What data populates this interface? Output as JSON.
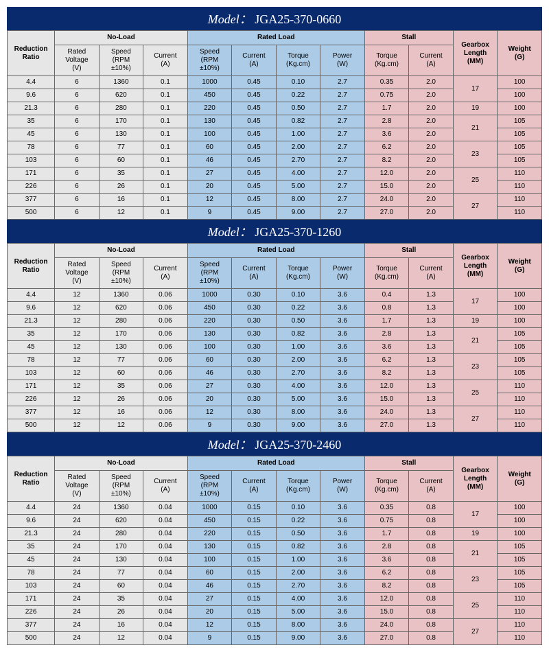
{
  "colors": {
    "header_bg": "#0a2a6e",
    "header_fg": "#ffffff",
    "gray": "#e6e6e6",
    "blue": "#accbe6",
    "pink": "#e8c2c4",
    "border": "#666666"
  },
  "labels": {
    "model_prefix": "Model：",
    "groups": {
      "noload": "No-Load",
      "rated": "Rated Load",
      "stall": "Stall"
    },
    "cols": {
      "ratio": "Reduction\nRatio",
      "voltage": "Rated\nVoltage\n(V)",
      "speed": "Speed\n(RPM\n±10%)",
      "current": "Current\n(A)",
      "torque_kgcm": "Torque\n(Kg.cm)",
      "power": "Power\n(W)",
      "torque_stall": "Torque\n(Kg.cm)",
      "current_stall": "Current\n(A)",
      "gearbox": "Gearbox\nLength\n(MM)",
      "weight": "Weight\n(G)"
    }
  },
  "tables": [
    {
      "model": "JGA25-370-0660",
      "rows": [
        {
          "ratio": "4.4",
          "v": "6",
          "nl_speed": "1360",
          "nl_cur": "0.1",
          "r_speed": "1000",
          "r_cur": "0.45",
          "r_tor": "0.10",
          "r_pow": "2.7",
          "s_tor": "0.35",
          "s_cur": "2.0",
          "gb": "17",
          "wt": "100"
        },
        {
          "ratio": "9.6",
          "v": "6",
          "nl_speed": "620",
          "nl_cur": "0.1",
          "r_speed": "450",
          "r_cur": "0.45",
          "r_tor": "0.22",
          "r_pow": "2.7",
          "s_tor": "0.75",
          "s_cur": "2.0",
          "gb": "",
          "wt": "100"
        },
        {
          "ratio": "21.3",
          "v": "6",
          "nl_speed": "280",
          "nl_cur": "0.1",
          "r_speed": "220",
          "r_cur": "0.45",
          "r_tor": "0.50",
          "r_pow": "2.7",
          "s_tor": "1.7",
          "s_cur": "2.0",
          "gb": "19",
          "wt": "100"
        },
        {
          "ratio": "35",
          "v": "6",
          "nl_speed": "170",
          "nl_cur": "0.1",
          "r_speed": "130",
          "r_cur": "0.45",
          "r_tor": "0.82",
          "r_pow": "2.7",
          "s_tor": "2.8",
          "s_cur": "2.0",
          "gb": "21",
          "wt": "105"
        },
        {
          "ratio": "45",
          "v": "6",
          "nl_speed": "130",
          "nl_cur": "0.1",
          "r_speed": "100",
          "r_cur": "0.45",
          "r_tor": "1.00",
          "r_pow": "2.7",
          "s_tor": "3.6",
          "s_cur": "2.0",
          "gb": "",
          "wt": "105"
        },
        {
          "ratio": "78",
          "v": "6",
          "nl_speed": "77",
          "nl_cur": "0.1",
          "r_speed": "60",
          "r_cur": "0.45",
          "r_tor": "2.00",
          "r_pow": "2.7",
          "s_tor": "6.2",
          "s_cur": "2.0",
          "gb": "23",
          "wt": "105"
        },
        {
          "ratio": "103",
          "v": "6",
          "nl_speed": "60",
          "nl_cur": "0.1",
          "r_speed": "46",
          "r_cur": "0.45",
          "r_tor": "2.70",
          "r_pow": "2.7",
          "s_tor": "8.2",
          "s_cur": "2.0",
          "gb": "",
          "wt": "105"
        },
        {
          "ratio": "171",
          "v": "6",
          "nl_speed": "35",
          "nl_cur": "0.1",
          "r_speed": "27",
          "r_cur": "0.45",
          "r_tor": "4.00",
          "r_pow": "2.7",
          "s_tor": "12.0",
          "s_cur": "2.0",
          "gb": "25",
          "wt": "110"
        },
        {
          "ratio": "226",
          "v": "6",
          "nl_speed": "26",
          "nl_cur": "0.1",
          "r_speed": "20",
          "r_cur": "0.45",
          "r_tor": "5.00",
          "r_pow": "2.7",
          "s_tor": "15.0",
          "s_cur": "2.0",
          "gb": "",
          "wt": "110"
        },
        {
          "ratio": "377",
          "v": "6",
          "nl_speed": "16",
          "nl_cur": "0.1",
          "r_speed": "12",
          "r_cur": "0.45",
          "r_tor": "8.00",
          "r_pow": "2.7",
          "s_tor": "24.0",
          "s_cur": "2.0",
          "gb": "27",
          "wt": "110"
        },
        {
          "ratio": "500",
          "v": "6",
          "nl_speed": "12",
          "nl_cur": "0.1",
          "r_speed": "9",
          "r_cur": "0.45",
          "r_tor": "9.00",
          "r_pow": "2.7",
          "s_tor": "27.0",
          "s_cur": "2.0",
          "gb": "",
          "wt": "110"
        }
      ],
      "gearbox_spans": [
        2,
        1,
        2,
        2,
        2,
        2
      ]
    },
    {
      "model": "JGA25-370-1260",
      "rows": [
        {
          "ratio": "4.4",
          "v": "12",
          "nl_speed": "1360",
          "nl_cur": "0.06",
          "r_speed": "1000",
          "r_cur": "0.30",
          "r_tor": "0.10",
          "r_pow": "3.6",
          "s_tor": "0.4",
          "s_cur": "1.3",
          "gb": "17",
          "wt": "100"
        },
        {
          "ratio": "9.6",
          "v": "12",
          "nl_speed": "620",
          "nl_cur": "0.06",
          "r_speed": "450",
          "r_cur": "0.30",
          "r_tor": "0.22",
          "r_pow": "3.6",
          "s_tor": "0.8",
          "s_cur": "1.3",
          "gb": "",
          "wt": "100"
        },
        {
          "ratio": "21.3",
          "v": "12",
          "nl_speed": "280",
          "nl_cur": "0.06",
          "r_speed": "220",
          "r_cur": "0.30",
          "r_tor": "0.50",
          "r_pow": "3.6",
          "s_tor": "1.7",
          "s_cur": "1.3",
          "gb": "19",
          "wt": "100"
        },
        {
          "ratio": "35",
          "v": "12",
          "nl_speed": "170",
          "nl_cur": "0.06",
          "r_speed": "130",
          "r_cur": "0.30",
          "r_tor": "0.82",
          "r_pow": "3.6",
          "s_tor": "2.8",
          "s_cur": "1.3",
          "gb": "21",
          "wt": "105"
        },
        {
          "ratio": "45",
          "v": "12",
          "nl_speed": "130",
          "nl_cur": "0.06",
          "r_speed": "100",
          "r_cur": "0.30",
          "r_tor": "1.00",
          "r_pow": "3.6",
          "s_tor": "3.6",
          "s_cur": "1.3",
          "gb": "",
          "wt": "105"
        },
        {
          "ratio": "78",
          "v": "12",
          "nl_speed": "77",
          "nl_cur": "0.06",
          "r_speed": "60",
          "r_cur": "0.30",
          "r_tor": "2.00",
          "r_pow": "3.6",
          "s_tor": "6.2",
          "s_cur": "1.3",
          "gb": "23",
          "wt": "105"
        },
        {
          "ratio": "103",
          "v": "12",
          "nl_speed": "60",
          "nl_cur": "0.06",
          "r_speed": "46",
          "r_cur": "0.30",
          "r_tor": "2.70",
          "r_pow": "3.6",
          "s_tor": "8.2",
          "s_cur": "1.3",
          "gb": "",
          "wt": "105"
        },
        {
          "ratio": "171",
          "v": "12",
          "nl_speed": "35",
          "nl_cur": "0.06",
          "r_speed": "27",
          "r_cur": "0.30",
          "r_tor": "4.00",
          "r_pow": "3.6",
          "s_tor": "12.0",
          "s_cur": "1.3",
          "gb": "25",
          "wt": "110"
        },
        {
          "ratio": "226",
          "v": "12",
          "nl_speed": "26",
          "nl_cur": "0.06",
          "r_speed": "20",
          "r_cur": "0.30",
          "r_tor": "5.00",
          "r_pow": "3.6",
          "s_tor": "15.0",
          "s_cur": "1.3",
          "gb": "",
          "wt": "110"
        },
        {
          "ratio": "377",
          "v": "12",
          "nl_speed": "16",
          "nl_cur": "0.06",
          "r_speed": "12",
          "r_cur": "0.30",
          "r_tor": "8.00",
          "r_pow": "3.6",
          "s_tor": "24.0",
          "s_cur": "1.3",
          "gb": "27",
          "wt": "110"
        },
        {
          "ratio": "500",
          "v": "12",
          "nl_speed": "12",
          "nl_cur": "0.06",
          "r_speed": "9",
          "r_cur": "0.30",
          "r_tor": "9.00",
          "r_pow": "3.6",
          "s_tor": "27.0",
          "s_cur": "1.3",
          "gb": "",
          "wt": "110"
        }
      ],
      "gearbox_spans": [
        2,
        1,
        2,
        2,
        2,
        2
      ]
    },
    {
      "model": "JGA25-370-2460",
      "rows": [
        {
          "ratio": "4.4",
          "v": "24",
          "nl_speed": "1360",
          "nl_cur": "0.04",
          "r_speed": "1000",
          "r_cur": "0.15",
          "r_tor": "0.10",
          "r_pow": "3.6",
          "s_tor": "0.35",
          "s_cur": "0.8",
          "gb": "17",
          "wt": "100"
        },
        {
          "ratio": "9.6",
          "v": "24",
          "nl_speed": "620",
          "nl_cur": "0.04",
          "r_speed": "450",
          "r_cur": "0.15",
          "r_tor": "0.22",
          "r_pow": "3.6",
          "s_tor": "0.75",
          "s_cur": "0.8",
          "gb": "",
          "wt": "100"
        },
        {
          "ratio": "21.3",
          "v": "24",
          "nl_speed": "280",
          "nl_cur": "0.04",
          "r_speed": "220",
          "r_cur": "0.15",
          "r_tor": "0.50",
          "r_pow": "3.6",
          "s_tor": "1.7",
          "s_cur": "0.8",
          "gb": "19",
          "wt": "100"
        },
        {
          "ratio": "35",
          "v": "24",
          "nl_speed": "170",
          "nl_cur": "0.04",
          "r_speed": "130",
          "r_cur": "0.15",
          "r_tor": "0.82",
          "r_pow": "3.6",
          "s_tor": "2.8",
          "s_cur": "0.8",
          "gb": "21",
          "wt": "105"
        },
        {
          "ratio": "45",
          "v": "24",
          "nl_speed": "130",
          "nl_cur": "0.04",
          "r_speed": "100",
          "r_cur": "0.15",
          "r_tor": "1.00",
          "r_pow": "3.6",
          "s_tor": "3.6",
          "s_cur": "0.8",
          "gb": "",
          "wt": "105"
        },
        {
          "ratio": "78",
          "v": "24",
          "nl_speed": "77",
          "nl_cur": "0.04",
          "r_speed": "60",
          "r_cur": "0.15",
          "r_tor": "2.00",
          "r_pow": "3.6",
          "s_tor": "6.2",
          "s_cur": "0.8",
          "gb": "23",
          "wt": "105"
        },
        {
          "ratio": "103",
          "v": "24",
          "nl_speed": "60",
          "nl_cur": "0.04",
          "r_speed": "46",
          "r_cur": "0.15",
          "r_tor": "2.70",
          "r_pow": "3.6",
          "s_tor": "8.2",
          "s_cur": "0.8",
          "gb": "",
          "wt": "105"
        },
        {
          "ratio": "171",
          "v": "24",
          "nl_speed": "35",
          "nl_cur": "0.04",
          "r_speed": "27",
          "r_cur": "0.15",
          "r_tor": "4.00",
          "r_pow": "3.6",
          "s_tor": "12.0",
          "s_cur": "0.8",
          "gb": "25",
          "wt": "110"
        },
        {
          "ratio": "226",
          "v": "24",
          "nl_speed": "26",
          "nl_cur": "0.04",
          "r_speed": "20",
          "r_cur": "0.15",
          "r_tor": "5.00",
          "r_pow": "3.6",
          "s_tor": "15.0",
          "s_cur": "0.8",
          "gb": "",
          "wt": "110"
        },
        {
          "ratio": "377",
          "v": "24",
          "nl_speed": "16",
          "nl_cur": "0.04",
          "r_speed": "12",
          "r_cur": "0.15",
          "r_tor": "8.00",
          "r_pow": "3.6",
          "s_tor": "24.0",
          "s_cur": "0.8",
          "gb": "27",
          "wt": "110"
        },
        {
          "ratio": "500",
          "v": "24",
          "nl_speed": "12",
          "nl_cur": "0.04",
          "r_speed": "9",
          "r_cur": "0.15",
          "r_tor": "9.00",
          "r_pow": "3.6",
          "s_tor": "27.0",
          "s_cur": "0.8",
          "gb": "",
          "wt": "110"
        }
      ],
      "gearbox_spans": [
        2,
        1,
        2,
        2,
        2,
        2
      ]
    }
  ]
}
